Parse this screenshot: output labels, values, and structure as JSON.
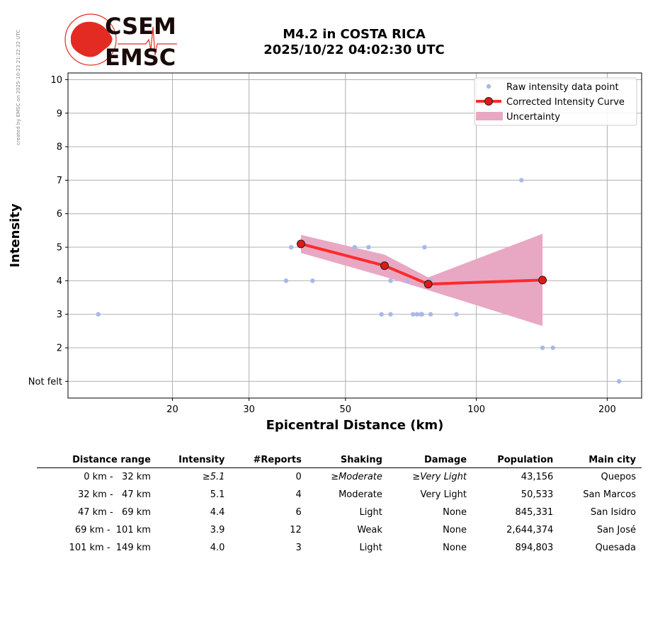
{
  "watermark": "created by EMSC on 2025-10-23 21:22:22 UTC",
  "logo": {
    "line1": "CSEM",
    "line2": "EMSC",
    "color": "#e32b23"
  },
  "title": {
    "line1": "M4.2 in COSTA RICA",
    "line2": "2025/10/22 04:02:30 UTC"
  },
  "chart_data": {
    "type": "scatter",
    "xlabel": "Epicentral Distance (km)",
    "ylabel": "Intensity",
    "xscale": "log",
    "xlim": [
      11.5,
      240
    ],
    "ylim": [
      0.5,
      10.2
    ],
    "grid": true,
    "xticks": [
      20,
      30,
      50,
      100,
      200
    ],
    "yticks": [
      {
        "value": 1,
        "label": "Not felt"
      },
      {
        "value": 2,
        "label": "2"
      },
      {
        "value": 3,
        "label": "3"
      },
      {
        "value": 4,
        "label": "4"
      },
      {
        "value": 5,
        "label": "5"
      },
      {
        "value": 6,
        "label": "6"
      },
      {
        "value": 7,
        "label": "7"
      },
      {
        "value": 8,
        "label": "8"
      },
      {
        "value": 9,
        "label": "9"
      },
      {
        "value": 10,
        "label": "10"
      }
    ],
    "legend_position": "top-right",
    "raw_points": {
      "name": "Raw intensity data point",
      "color": "#a9b8e8",
      "points": [
        [
          13.5,
          3
        ],
        [
          37.5,
          5
        ],
        [
          36.5,
          4
        ],
        [
          42,
          4
        ],
        [
          52.5,
          5
        ],
        [
          56.5,
          5
        ],
        [
          60.5,
          3
        ],
        [
          63.5,
          4
        ],
        [
          63.5,
          3
        ],
        [
          69.5,
          4
        ],
        [
          71.5,
          3
        ],
        [
          73,
          3
        ],
        [
          74.5,
          3
        ],
        [
          75,
          3
        ],
        [
          76,
          5
        ],
        [
          78.5,
          3
        ],
        [
          78.5,
          4
        ],
        [
          90,
          3
        ],
        [
          127,
          7
        ],
        [
          142,
          2
        ],
        [
          150,
          2
        ],
        [
          213,
          1
        ]
      ]
    },
    "corrected_curve": {
      "name": "Corrected Intensity Curve",
      "color": "#ff2a2a",
      "points": [
        [
          39.5,
          5.1
        ],
        [
          61.5,
          4.45
        ],
        [
          77.5,
          3.9
        ],
        [
          142,
          4.02
        ]
      ]
    },
    "uncertainty": {
      "name": "Uncertainty",
      "color": "#e8a8c4",
      "upper": [
        [
          39.5,
          5.37
        ],
        [
          61.5,
          4.78
        ],
        [
          77.5,
          4.1
        ],
        [
          142,
          5.4
        ]
      ],
      "lower": [
        [
          39.5,
          4.83
        ],
        [
          61.5,
          4.12
        ],
        [
          77.5,
          3.72
        ],
        [
          142,
          2.65
        ]
      ]
    }
  },
  "table": {
    "headers": [
      "Distance range",
      "Intensity",
      "#Reports",
      "Shaking",
      "Damage",
      "Population",
      "Main city"
    ],
    "rows": [
      {
        "dist": "0 km -   32 km",
        "intensity": "≥5.1",
        "reports": "0",
        "shaking": "≥Moderate",
        "damage": "≥Very Light",
        "population": "43,156",
        "city": "Quepos"
      },
      {
        "dist": "32 km -   47 km",
        "intensity": "5.1",
        "reports": "4",
        "shaking": "Moderate",
        "damage": "Very Light",
        "population": "50,533",
        "city": "San Marcos"
      },
      {
        "dist": "47 km -   69 km",
        "intensity": "4.4",
        "reports": "6",
        "shaking": "Light",
        "damage": "None",
        "population": "845,331",
        "city": "San Isidro"
      },
      {
        "dist": "69 km -  101 km",
        "intensity": "3.9",
        "reports": "12",
        "shaking": "Weak",
        "damage": "None",
        "population": "2,644,374",
        "city": "San José"
      },
      {
        "dist": "101 km -  149 km",
        "intensity": "4.0",
        "reports": "3",
        "shaking": "Light",
        "damage": "None",
        "population": "894,803",
        "city": "Quesada"
      }
    ]
  }
}
